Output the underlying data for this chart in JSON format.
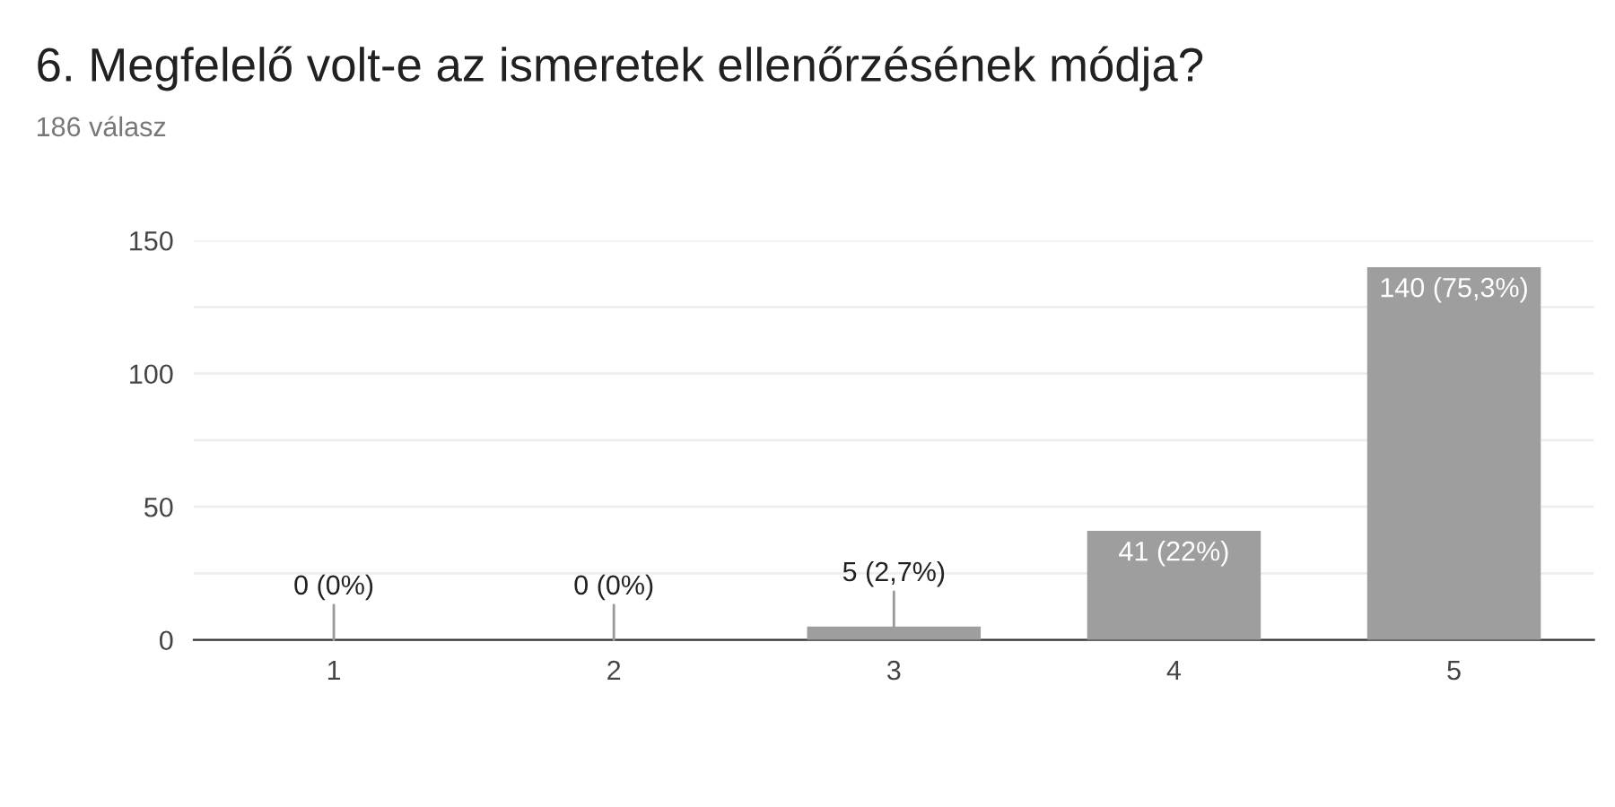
{
  "chart_data": {
    "type": "bar",
    "title": "6. Megfelelő volt-e az ismeretek ellenőrzésének módja?",
    "subtitle": "186 válasz",
    "categories": [
      "1",
      "2",
      "3",
      "4",
      "5"
    ],
    "values": [
      0,
      0,
      5,
      41,
      140
    ],
    "color": "#9e9e9e",
    "value_labels": [
      "0 (0%)",
      "0 (0%)",
      "5 (2,7%)",
      "41 (22%)",
      "140 (75,3%)"
    ],
    "ylim": [
      0,
      150
    ],
    "yticks": [
      0,
      {
        "value": 25,
        "label": null
      },
      50,
      {
        "value": 75,
        "label": null
      },
      100,
      {
        "value": 125,
        "label": null
      },
      150
    ],
    "grid": "y",
    "legend": false
  }
}
